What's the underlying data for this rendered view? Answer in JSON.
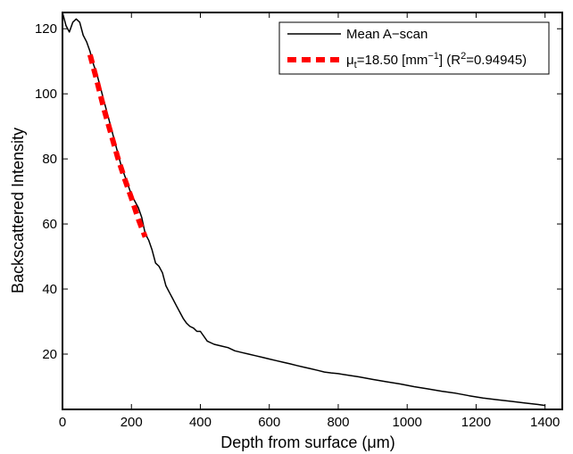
{
  "chart_data": {
    "type": "line",
    "xlabel": "Depth from surface (μm)",
    "ylabel": "Backscattered Intensity",
    "xlim": [
      0,
      1450
    ],
    "ylim": [
      3,
      125
    ],
    "x_ticks": [
      0,
      200,
      400,
      600,
      800,
      1000,
      1200,
      1400
    ],
    "y_ticks": [
      20,
      40,
      60,
      80,
      100,
      120
    ],
    "grid": false,
    "legend": {
      "placement": "top-right",
      "entries": [
        {
          "label": "Mean A−scan"
        },
        {
          "label_parts": {
            "symbol": "μ",
            "subscript": "t",
            "text_a": "=18.50 [mm",
            "superscript": "−1",
            "text_b": "] (R",
            "superscript2": "2",
            "text_c": "=0.94945)"
          }
        }
      ]
    },
    "series": [
      {
        "name": "Mean A−scan",
        "color": "#000000",
        "style": "solid",
        "x": [
          0,
          10,
          20,
          30,
          40,
          50,
          60,
          70,
          80,
          90,
          100,
          110,
          120,
          130,
          140,
          150,
          160,
          170,
          180,
          190,
          200,
          210,
          220,
          230,
          240,
          250,
          260,
          270,
          280,
          290,
          300,
          310,
          320,
          330,
          340,
          350,
          360,
          370,
          380,
          390,
          400,
          420,
          440,
          460,
          480,
          500,
          520,
          540,
          560,
          580,
          600,
          620,
          640,
          660,
          680,
          700,
          720,
          740,
          760,
          780,
          800,
          830,
          860,
          900,
          940,
          980,
          1020,
          1060,
          1100,
          1140,
          1180,
          1220,
          1260,
          1300,
          1340,
          1380,
          1400
        ],
        "y": [
          125,
          121,
          119,
          122,
          123,
          122,
          118,
          116,
          113,
          109,
          106,
          102,
          98,
          94,
          90,
          86,
          82,
          78,
          75,
          72,
          69,
          67,
          65,
          62,
          57,
          55,
          52,
          48,
          47,
          45,
          41,
          39,
          37,
          35,
          33,
          31,
          29.5,
          28.5,
          28,
          27,
          27,
          24,
          23,
          22.5,
          22,
          21,
          20.5,
          20,
          19.5,
          19,
          18.5,
          18,
          17.5,
          17,
          16.5,
          16,
          15.5,
          15,
          14.5,
          14.2,
          14,
          13.5,
          13,
          12.2,
          11.5,
          10.8,
          10,
          9.3,
          8.6,
          8,
          7.2,
          6.5,
          6,
          5.5,
          5,
          4.5,
          4.2
        ]
      },
      {
        "name": "μt fit",
        "color": "#ff0000",
        "style": "dashed",
        "x": [
          80,
          100,
          120,
          140,
          160,
          180,
          200,
          220,
          240
        ],
        "y": [
          112,
          104,
          95.5,
          88,
          80.5,
          74,
          68,
          61.5,
          56
        ]
      }
    ]
  }
}
